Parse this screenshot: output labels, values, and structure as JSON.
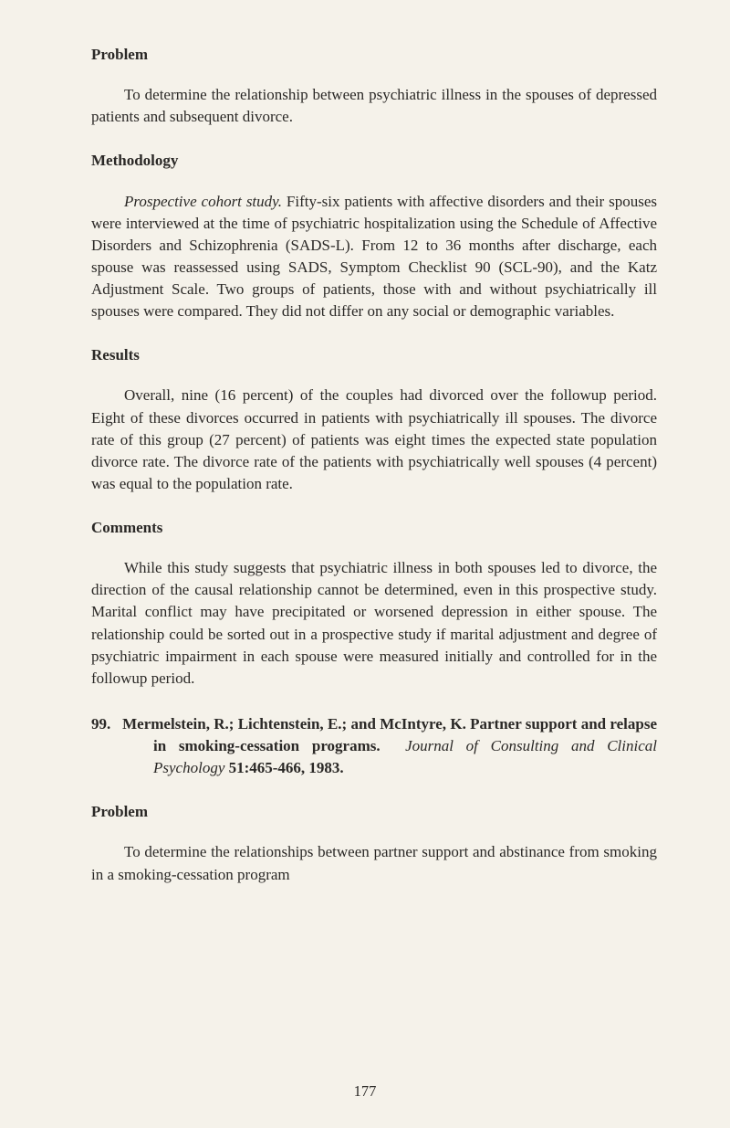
{
  "sections": {
    "problem1": {
      "heading": "Problem",
      "text": "To determine the relationship between psychiatric illness in the spouses of depressed patients and subsequent divorce."
    },
    "methodology": {
      "heading": "Methodology",
      "prefix_italic": "Prospective cohort study.",
      "text": " Fifty-six patients with affective disorders and their spouses were interviewed at the time of psychiatric hospitalization using the Schedule of Affective Disorders and Schizophrenia (SADS-L). From 12 to 36 months after discharge, each spouse was reassessed using SADS, Symptom Checklist 90 (SCL-90), and the Katz Adjustment Scale. Two groups of patients, those with and without psychiatrically ill spouses were compared. They did not differ on any social or demographic variables."
    },
    "results": {
      "heading": "Results",
      "text": "Overall, nine (16 percent) of the couples had divorced over the followup period. Eight of these divorces occurred in patients with psychiatrically ill spouses. The divorce rate of this group (27 percent) of patients was eight times the expected state population divorce rate. The divorce rate of the patients with psychiatrically well spouses (4 percent) was equal to the population rate."
    },
    "comments": {
      "heading": "Comments",
      "text": "While this study suggests that psychiatric illness in both spouses led to divorce, the direction of the causal relationship cannot be determined, even in this prospective study. Marital conflict may have precipitated or worsened depression in either spouse. The relationship could be sorted out in a prospective study if marital adjustment and degree of psychiatric impairment in each spouse were measured initially and controlled for in the followup period."
    },
    "entry": {
      "number": "99.",
      "authors_title": "Mermelstein, R.; Lichtenstein, E.; and McIntyre, K. Partner support and relapse in smoking-cessation programs.",
      "journal": "Journal of Consulting and Clinical Psychology",
      "citation": " 51:465-466, 1983."
    },
    "problem2": {
      "heading": "Problem",
      "text": "To determine the relationships between partner support and abstinance from smoking in a smoking-cessation program"
    }
  },
  "page_number": "177"
}
